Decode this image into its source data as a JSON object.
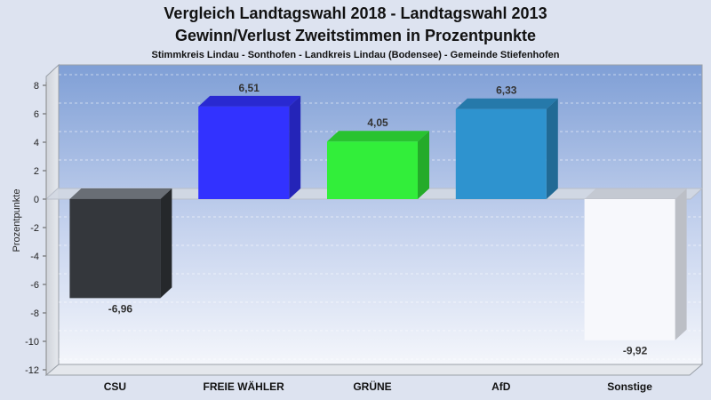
{
  "chart_data": {
    "type": "bar",
    "title": "Vergleich Landtagswahl 2018 - Landtagswahl 2013",
    "subtitle": "Gewinn/Verlust Zweitstimmen in Prozentpunkte",
    "subtitle2": "Stimmkreis Lindau - Sonthofen - Landkreis Lindau (Bodensee) - Gemeinde Stiefenhofen",
    "xlabel": "",
    "ylabel": "Prozentpunkte",
    "ylim": [
      -12,
      8
    ],
    "yticks": [
      8,
      6,
      4,
      2,
      0,
      -2,
      -4,
      -6,
      -8,
      -10,
      -12
    ],
    "categories": [
      "CSU",
      "FREIE WÄHLER",
      "GRÜNE",
      "AfD",
      "Sonstige"
    ],
    "values": [
      -6.96,
      6.51,
      4.05,
      6.33,
      -9.92
    ],
    "value_labels": [
      "-6,96",
      "6,51",
      "4,05",
      "6,33",
      "-9,92"
    ],
    "colors": [
      "#34373c",
      "#3232ff",
      "#32ee3a",
      "#2e93cf",
      "#f7f8fc"
    ],
    "grid": true,
    "legend": "none"
  }
}
